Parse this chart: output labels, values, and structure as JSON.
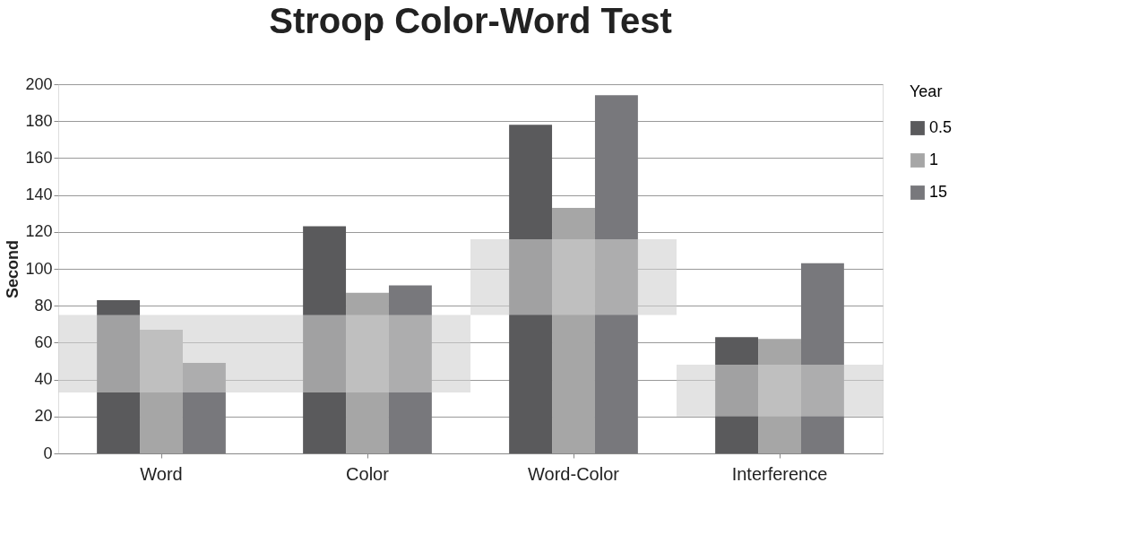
{
  "chart_data": {
    "type": "bar",
    "title": "Stroop Color-Word Test",
    "ylabel": "Second",
    "legend_title": "Year",
    "categories": [
      "Word",
      "Color",
      "Word-Color",
      "Interference"
    ],
    "series": [
      {
        "name": "0.5",
        "color": "#5a5a5c",
        "values": [
          83,
          123,
          178,
          63
        ]
      },
      {
        "name": "1",
        "color": "#a6a6a6",
        "values": [
          67,
          87,
          133,
          62
        ]
      },
      {
        "name": "15",
        "color": "#78787c",
        "values": [
          49,
          91,
          194,
          103
        ]
      },
      {
        "color": "#d0d0d0",
        "base": [
          33,
          33,
          75,
          20
        ],
        "values": [
          42,
          42,
          41,
          28
        ]
      }
    ],
    "ylim": [
      0,
      200
    ],
    "yticks": [
      0,
      20,
      40,
      60,
      80,
      100,
      120,
      140,
      160,
      180,
      200
    ],
    "grid": "y",
    "legend": "right"
  }
}
